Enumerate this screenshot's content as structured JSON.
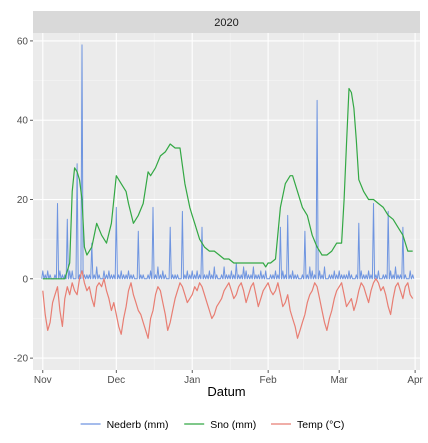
{
  "chart_data": {
    "type": "line",
    "facet_label": "2020",
    "title": "",
    "xlabel": "Datum",
    "ylabel": "",
    "x_ticks": [
      {
        "label": "Nov",
        "day": 0
      },
      {
        "label": "Dec",
        "day": 30
      },
      {
        "label": "Jan",
        "day": 61
      },
      {
        "label": "Feb",
        "day": 92
      },
      {
        "label": "Mar",
        "day": 121
      },
      {
        "label": "Apr",
        "day": 152
      }
    ],
    "xlim": [
      -4,
      154
    ],
    "y_ticks": [
      -20,
      0,
      20,
      40,
      60
    ],
    "ylim": [
      -23,
      62
    ],
    "grid": true,
    "legend_position": "bottom",
    "series": [
      {
        "name": "Nederb (mm)",
        "color": "#6f95e0",
        "style": "spikes",
        "x": [
          0,
          1,
          2,
          3,
          5,
          6,
          7,
          8,
          9,
          10,
          11,
          12,
          14,
          15,
          16,
          17,
          18,
          19,
          20,
          21,
          22,
          23,
          25,
          26,
          27,
          28,
          29,
          30,
          31,
          32,
          33,
          34,
          35,
          36,
          37,
          39,
          40,
          41,
          43,
          44,
          45,
          46,
          47,
          48,
          49,
          50,
          52,
          53,
          54,
          55,
          57,
          58,
          59,
          60,
          61,
          62,
          63,
          64,
          65,
          66,
          67,
          68,
          69,
          70,
          71,
          73,
          74,
          75,
          76,
          77,
          78,
          79,
          80,
          81,
          82,
          83,
          84,
          85,
          86,
          87,
          88,
          89,
          90,
          91,
          93,
          94,
          95,
          96,
          97,
          98,
          99,
          100,
          101,
          102,
          103,
          104,
          106,
          107,
          108,
          109,
          110,
          111,
          112,
          113,
          114,
          115,
          117,
          118,
          119,
          120,
          121,
          122,
          123,
          124,
          125,
          126,
          128,
          129,
          130,
          131,
          132,
          133,
          134,
          135,
          136,
          137,
          139,
          140,
          141,
          142,
          143,
          144,
          145,
          146,
          147,
          148,
          150,
          151
        ],
        "y": [
          2,
          1,
          2,
          1,
          1,
          19,
          2,
          1,
          1,
          15,
          2,
          2,
          29,
          1,
          59,
          1,
          1,
          1,
          9,
          1,
          3,
          1,
          2,
          1,
          2,
          1,
          1,
          18,
          1,
          2,
          1,
          1,
          2,
          1,
          1,
          12,
          1,
          1,
          1,
          2,
          18,
          1,
          3,
          1,
          2,
          1,
          13,
          1,
          1,
          1,
          17,
          1,
          2,
          1,
          2,
          1,
          2,
          1,
          13,
          1,
          1,
          2,
          1,
          3,
          1,
          1,
          3,
          1,
          1,
          2,
          1,
          4,
          1,
          1,
          3,
          2,
          1,
          1,
          3,
          1,
          1,
          2,
          1,
          2,
          1,
          1,
          2,
          1,
          13,
          2,
          1,
          16,
          1,
          2,
          1,
          1,
          1,
          12,
          1,
          3,
          2,
          1,
          45,
          2,
          1,
          3,
          1,
          1,
          2,
          1,
          2,
          1,
          1,
          1,
          2,
          1,
          1,
          14,
          2,
          1,
          1,
          2,
          1,
          19,
          1,
          2,
          1,
          1,
          17,
          2,
          1,
          3,
          1,
          1,
          13,
          1,
          2,
          1
        ],
        "baseline": 0
      },
      {
        "name": "Sno (mm)",
        "color": "#33a844",
        "style": "line",
        "x": [
          0,
          3,
          6,
          9,
          11,
          12,
          13,
          14,
          15,
          16,
          17,
          18,
          20,
          22,
          24,
          26,
          28,
          30,
          32,
          34,
          35,
          37,
          39,
          41,
          43,
          44,
          46,
          48,
          50,
          52,
          54,
          56,
          58,
          60,
          61,
          62,
          64,
          65,
          66,
          68,
          70,
          72,
          74,
          76,
          78,
          80,
          82,
          84,
          86,
          88,
          90,
          91,
          92,
          93,
          95,
          97,
          99,
          101,
          102,
          104,
          106,
          108,
          110,
          112,
          114,
          116,
          118,
          120,
          122,
          123,
          124,
          125,
          126,
          127,
          128,
          129,
          131,
          133,
          135,
          137,
          139,
          141,
          143,
          145,
          147,
          149,
          151
        ],
        "y": [
          0,
          0,
          0,
          0,
          4,
          22,
          28,
          27,
          25,
          20,
          8,
          6,
          8,
          14,
          11,
          9,
          14,
          26,
          24,
          22,
          19,
          14,
          16,
          19,
          27,
          26,
          28,
          31,
          32,
          34,
          33,
          33,
          24,
          18,
          16,
          14,
          10,
          9,
          8,
          7,
          7,
          6,
          5,
          5,
          4,
          4,
          4,
          4,
          4,
          4,
          4,
          3,
          4,
          4,
          5,
          18,
          24,
          26,
          26,
          22,
          18,
          16,
          11,
          8,
          6,
          6,
          7,
          9,
          9,
          20,
          34,
          48,
          47,
          43,
          35,
          25,
          22,
          20,
          20,
          19,
          18,
          16,
          15,
          13,
          11,
          7,
          7
        ],
        "baseline": null
      },
      {
        "name": "Temp (°C)",
        "color": "#e87e73",
        "style": "line",
        "x": [
          0,
          1,
          2,
          3,
          4,
          5,
          6,
          7,
          8,
          9,
          10,
          11,
          12,
          13,
          14,
          15,
          16,
          17,
          18,
          19,
          20,
          21,
          22,
          23,
          24,
          25,
          26,
          27,
          28,
          29,
          30,
          31,
          32,
          33,
          34,
          35,
          36,
          37,
          38,
          39,
          40,
          41,
          42,
          43,
          44,
          45,
          46,
          47,
          48,
          49,
          50,
          51,
          52,
          53,
          54,
          55,
          56,
          57,
          58,
          59,
          60,
          61,
          62,
          63,
          64,
          65,
          66,
          67,
          68,
          69,
          70,
          71,
          72,
          73,
          74,
          75,
          76,
          77,
          78,
          79,
          80,
          81,
          82,
          83,
          84,
          85,
          86,
          87,
          88,
          89,
          90,
          91,
          92,
          93,
          94,
          95,
          96,
          97,
          98,
          99,
          100,
          101,
          102,
          103,
          104,
          105,
          106,
          107,
          108,
          109,
          110,
          111,
          112,
          113,
          114,
          115,
          116,
          117,
          118,
          119,
          120,
          121,
          122,
          123,
          124,
          125,
          126,
          127,
          128,
          129,
          130,
          131,
          132,
          133,
          134,
          135,
          136,
          137,
          138,
          139,
          140,
          141,
          142,
          143,
          144,
          145,
          146,
          147,
          148,
          149,
          150,
          151
        ],
        "y": [
          -3,
          -9,
          -13,
          -11,
          -6,
          -4,
          -2,
          -8,
          -12,
          -5,
          -2,
          -4,
          -1,
          -3,
          -4,
          0,
          2,
          -1,
          -3,
          -2,
          -5,
          -7,
          -2,
          -1,
          -2,
          0,
          -3,
          -5,
          -8,
          -6,
          -9,
          -12,
          -14,
          -10,
          -7,
          -3,
          -1,
          -4,
          -6,
          -8,
          -9,
          -11,
          -13,
          -15,
          -10,
          -8,
          -4,
          -2,
          -3,
          -6,
          -9,
          -13,
          -11,
          -8,
          -5,
          -3,
          -1,
          -2,
          -4,
          -6,
          -5,
          -4,
          -2,
          -3,
          -1,
          -2,
          -4,
          -6,
          -8,
          -10,
          -9,
          -7,
          -6,
          -5,
          -3,
          -2,
          -1,
          -3,
          -5,
          -4,
          -2,
          -1,
          -3,
          -6,
          -4,
          -2,
          -1,
          -4,
          -7,
          -5,
          -3,
          -2,
          -1,
          -3,
          -4,
          -3,
          -1,
          -4,
          -7,
          -6,
          -4,
          -8,
          -10,
          -12,
          -15,
          -13,
          -11,
          -9,
          -6,
          -4,
          -3,
          -1,
          -2,
          -5,
          -8,
          -11,
          -13,
          -10,
          -8,
          -5,
          -3,
          -2,
          -1,
          -4,
          -7,
          -6,
          -5,
          -8,
          -6,
          -3,
          -1,
          -2,
          -4,
          -6,
          -3,
          -1,
          0,
          -1,
          -3,
          -2,
          -4,
          -7,
          -9,
          -5,
          -2,
          -1,
          -3,
          -5,
          -2,
          -1,
          -4,
          -5
        ]
      }
    ]
  }
}
